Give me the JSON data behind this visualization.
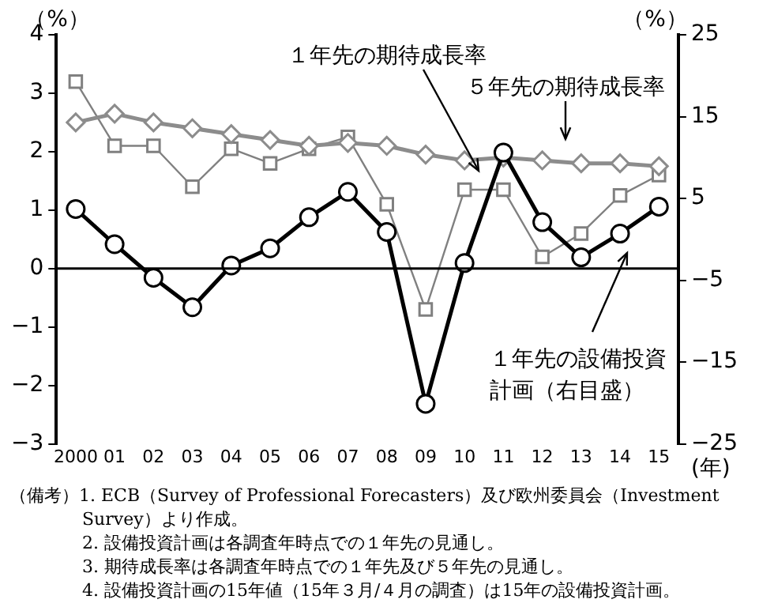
{
  "chart_data": {
    "type": "line",
    "categories": [
      "2000",
      "01",
      "02",
      "03",
      "04",
      "05",
      "06",
      "07",
      "08",
      "09",
      "10",
      "11",
      "12",
      "13",
      "14",
      "15"
    ],
    "xlabel": "(年)",
    "ylabel": "（%）",
    "y2label": "（%）",
    "series": [
      {
        "name": "１年先の期待成長率",
        "color": "#808080",
        "marker": "square",
        "values": [
          3.2,
          2.1,
          2.1,
          1.4,
          2.05,
          1.8,
          2.05,
          2.25,
          1.1,
          -0.7,
          1.35,
          1.35,
          0.2,
          0.6,
          1.25,
          1.6
        ]
      },
      {
        "name": "５年先の期待成長率",
        "color": "#8c8c8c",
        "marker": "diamond",
        "values": [
          2.5,
          2.65,
          2.5,
          2.4,
          2.3,
          2.2,
          2.1,
          2.15,
          2.1,
          1.95,
          1.85,
          1.9,
          1.85,
          1.8,
          1.8,
          1.75
        ]
      },
      {
        "name": "１年先の設備投資計画（右目盛）",
        "color": "#000000",
        "marker": "circle",
        "axis": "y2",
        "values": [
          3.7,
          -0.6,
          -4.7,
          -8.3,
          -3.2,
          -1.1,
          2.7,
          5.8,
          0.9,
          -20.1,
          -2.9,
          10.6,
          2.1,
          -2.2,
          0.7,
          4.0
        ]
      }
    ],
    "ylim": [
      -3,
      4
    ],
    "yticks": [
      -3,
      -2,
      -1,
      0,
      1,
      2,
      3,
      4
    ],
    "y2lim": [
      -25,
      25
    ],
    "y2ticks": [
      -25,
      -15,
      -5,
      5,
      15,
      25
    ],
    "ref_lines": [
      {
        "axis": "y",
        "value": 0,
        "color": "#000000"
      }
    ],
    "grid": false,
    "legend": false,
    "annotations": [
      "（備考）1. ECB（Survey of Professional Forecasters）及び欧州委員会（Investment Survey）より作成。",
      "2. 設備投資計画は各調査年時点での１年先の見通し。",
      "3. 期待成長率は各調査年時点での１年先及び５年先の見通し。",
      "4. 設備投資計画の15年値（15年３月/４月の調査）は15年の設備投資計画。"
    ]
  }
}
